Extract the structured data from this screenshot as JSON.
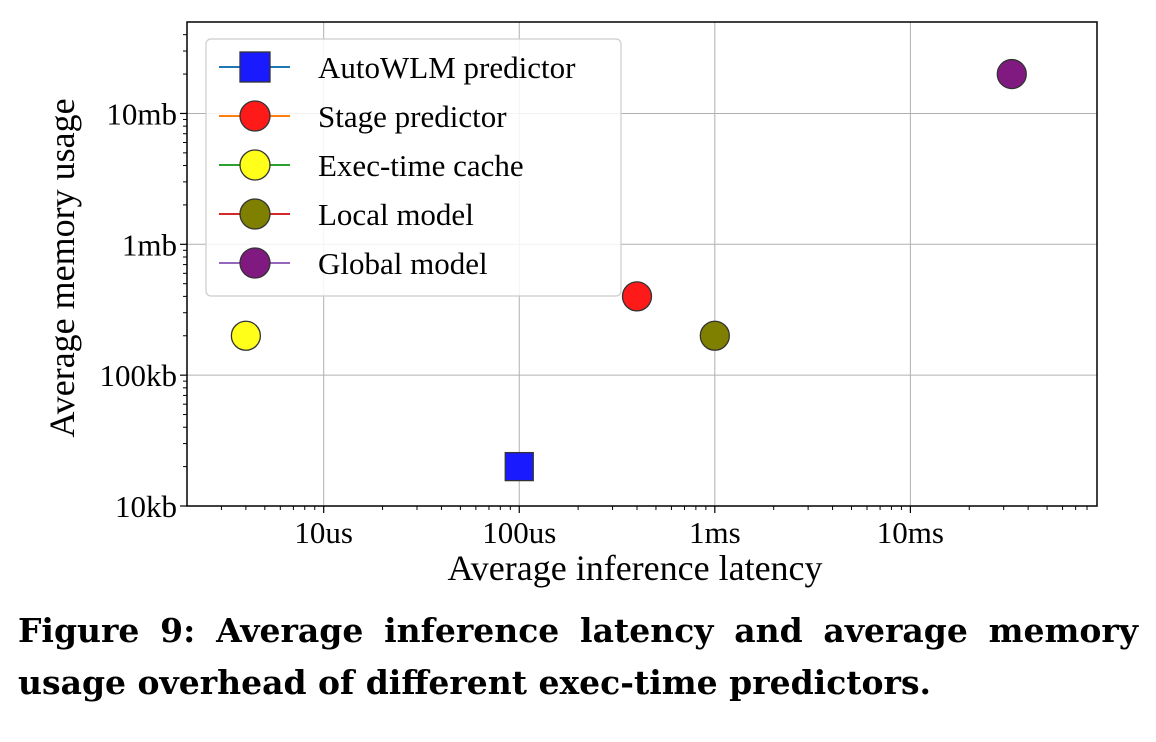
{
  "chart_data": {
    "type": "scatter",
    "xlabel": "Average inference latency",
    "ylabel": "Average memory usage",
    "x_scale": "log",
    "y_scale": "log",
    "x_ticks": [
      {
        "value": 10,
        "label": "10us"
      },
      {
        "value": 100,
        "label": "100us"
      },
      {
        "value": 1000,
        "label": "1ms"
      },
      {
        "value": 10000,
        "label": "10ms"
      }
    ],
    "y_ticks": [
      {
        "value": 10,
        "label": "10kb"
      },
      {
        "value": 100,
        "label": "100kb"
      },
      {
        "value": 1000,
        "label": "1mb"
      },
      {
        "value": 10000,
        "label": "10mb"
      }
    ],
    "xlim": [
      2,
      90000
    ],
    "ylim": [
      10,
      50000
    ],
    "grid": true,
    "legend_position": "top-left",
    "series": [
      {
        "name": "AutoWLM predictor",
        "marker": "square",
        "color": "#1a1aff",
        "line_color": "#1f77b4",
        "x": 100,
        "y": 20
      },
      {
        "name": "Stage predictor",
        "marker": "circle",
        "color": "#ff1a1a",
        "line_color": "#ff7f0e",
        "x": 400,
        "y": 400
      },
      {
        "name": "Exec-time cache",
        "marker": "circle",
        "color": "#ffff1a",
        "line_color": "#2ca02c",
        "x": 4,
        "y": 200
      },
      {
        "name": "Local model",
        "marker": "circle",
        "color": "#808000",
        "line_color": "#d62728",
        "x": 1000,
        "y": 200
      },
      {
        "name": "Global model",
        "marker": "circle",
        "color": "#801a80",
        "line_color": "#9467bd",
        "x": 33000,
        "y": 20000
      }
    ]
  },
  "caption": "Figure 9: Average inference latency and average memory usage overhead of different exec-time predictors."
}
